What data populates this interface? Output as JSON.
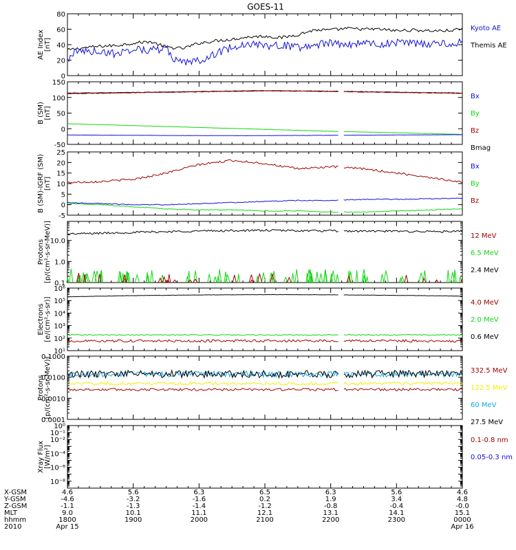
{
  "title": "GOES-11",
  "colors": {
    "black": "#000000",
    "blue": "#1010d8",
    "red": "#a00000",
    "green": "#10d810",
    "cyan": "#10a8e8",
    "yellow": "#f0f000"
  },
  "chart_data": [
    {
      "id": "ae",
      "type": "line",
      "ylabel": [
        "AE Index",
        "[nT]"
      ],
      "yscale": "linear",
      "ylim": [
        0,
        80
      ],
      "yticks": [
        0,
        20,
        40,
        60,
        80
      ],
      "yticklabels": [
        "0",
        "20",
        "40",
        "60",
        "80"
      ],
      "legend": [
        {
          "label": "Kyoto AE",
          "color": "blue"
        },
        {
          "label": "Themis AE",
          "color": "black"
        }
      ],
      "series": [
        {
          "name": "Themis AE",
          "color": "black",
          "x_hours": [
            18.0,
            18.25,
            18.5,
            18.75,
            19.0,
            19.25,
            19.5,
            19.75,
            20.0,
            20.25,
            20.5,
            20.75,
            21.0,
            21.25,
            21.5,
            21.75,
            22.0,
            22.25,
            22.5,
            22.75,
            23.0,
            23.25,
            23.5,
            23.75,
            24.0
          ],
          "y": [
            33,
            36,
            38,
            39,
            42,
            44,
            37,
            35,
            42,
            45,
            47,
            50,
            51,
            49,
            53,
            59,
            59,
            61,
            60,
            60,
            58,
            59,
            58,
            58,
            60
          ],
          "noise": 2
        },
        {
          "name": "Kyoto AE",
          "color": "blue",
          "x_hours": [
            18.0,
            18.1,
            18.25,
            18.5,
            18.75,
            19.0,
            19.25,
            19.5,
            19.6,
            19.75,
            20.0,
            20.25,
            20.5,
            20.75,
            21.0,
            21.25,
            21.5,
            21.75,
            22.0,
            22.25,
            22.5,
            22.75,
            23.0,
            23.25,
            23.5,
            23.75,
            23.9,
            24.0
          ],
          "y": [
            20,
            30,
            32,
            31,
            28,
            35,
            33,
            35,
            22,
            16,
            20,
            28,
            37,
            42,
            38,
            40,
            36,
            40,
            42,
            40,
            43,
            40,
            43,
            42,
            40,
            43,
            38,
            48
          ],
          "noise": 5
        }
      ]
    },
    {
      "id": "bsm",
      "type": "line",
      "ylabel": [
        "B (SM)",
        "[nT]"
      ],
      "yscale": "linear",
      "ylim": [
        -50,
        150
      ],
      "yticks": [
        -50,
        0,
        50,
        100,
        150
      ],
      "yticklabels": [
        "-50",
        "0",
        "50",
        "100",
        "150"
      ],
      "legend": [
        {
          "label": "Bx",
          "color": "blue"
        },
        {
          "label": "By",
          "color": "green"
        },
        {
          "label": "Bz",
          "color": "red"
        },
        {
          "label": "Bmag",
          "color": "black"
        }
      ],
      "series": [
        {
          "name": "Bmag",
          "color": "black",
          "x_hours": [
            18.0,
            19.0,
            20.0,
            21.0,
            22.0,
            23.0,
            24.0
          ],
          "y": [
            114,
            116,
            119,
            122,
            120,
            117,
            114
          ],
          "noise": 0.6,
          "gap": [
            22.13,
            22.2
          ]
        },
        {
          "name": "Bz",
          "color": "red",
          "x_hours": [
            18.0,
            19.0,
            20.0,
            21.0,
            22.0,
            23.0,
            24.0
          ],
          "y": [
            112,
            115,
            118,
            121,
            119,
            116,
            113
          ],
          "noise": 0.8,
          "gap": [
            22.13,
            22.2
          ]
        },
        {
          "name": "By",
          "color": "green",
          "x_hours": [
            18.0,
            19.0,
            20.0,
            21.0,
            22.0,
            23.0,
            24.0
          ],
          "y": [
            16,
            10,
            4,
            -2,
            -8,
            -13,
            -18
          ],
          "noise": 0.3,
          "gap": [
            22.13,
            22.2
          ]
        },
        {
          "name": "Bx",
          "color": "blue",
          "x_hours": [
            18.0,
            19.0,
            20.0,
            21.0,
            22.0,
            23.0,
            24.0
          ],
          "y": [
            -20,
            -21,
            -22,
            -22,
            -21,
            -20,
            -19
          ],
          "noise": 0.3,
          "gap": [
            22.13,
            22.2
          ]
        }
      ]
    },
    {
      "id": "bgrf",
      "type": "line",
      "ylabel": [
        "B (SM)-IGRF (SM)",
        "[nT]"
      ],
      "yscale": "linear",
      "ylim": [
        -5,
        25
      ],
      "yticks": [
        -5,
        0,
        5,
        10,
        15,
        20,
        25
      ],
      "yticklabels": [
        "-5",
        "0",
        "5",
        "10",
        "15",
        "20",
        "25"
      ],
      "legend": [
        {
          "label": "Bx",
          "color": "blue"
        },
        {
          "label": "By",
          "color": "green"
        },
        {
          "label": "Bz",
          "color": "red"
        }
      ],
      "series": [
        {
          "name": "Bz",
          "color": "red",
          "x_hours": [
            18.0,
            18.5,
            19.0,
            19.5,
            20.0,
            20.5,
            21.0,
            21.5,
            22.0,
            22.5,
            23.0,
            23.5,
            24.0
          ],
          "y": [
            10.5,
            11,
            12,
            15,
            19,
            21,
            19.5,
            17,
            18,
            17,
            15,
            13,
            10.5
          ],
          "noise": 0.5,
          "gap": [
            22.13,
            22.2
          ]
        },
        {
          "name": "Bx",
          "color": "blue",
          "x_hours": [
            18.0,
            18.5,
            19.0,
            19.5,
            20.0,
            20.5,
            21.0,
            21.5,
            22.0,
            22.5,
            23.0,
            23.5,
            24.0
          ],
          "y": [
            1,
            0.5,
            0,
            0,
            0.5,
            1,
            1.5,
            2,
            2,
            2.5,
            2.5,
            2.8,
            3
          ],
          "noise": 0.2,
          "gap": [
            22.13,
            22.2
          ]
        },
        {
          "name": "By",
          "color": "green",
          "x_hours": [
            18.0,
            18.5,
            19.0,
            19.5,
            20.0,
            20.5,
            21.0,
            21.5,
            22.0,
            22.5,
            23.0,
            23.5,
            24.0
          ],
          "y": [
            0.5,
            0,
            -1,
            -2,
            -2.5,
            -2.5,
            -3,
            -3,
            -3.5,
            -3.5,
            -3,
            -2.5,
            -2
          ],
          "noise": 0.2,
          "gap": [
            22.13,
            22.2
          ]
        }
      ]
    },
    {
      "id": "prot1",
      "type": "line",
      "ylabel": [
        "Protons",
        "[p/(cm²-s-sr-MeV)]"
      ],
      "yscale": "log",
      "ylim": [
        0.1,
        80
      ],
      "yticks": [
        0.1,
        1.0,
        10.0
      ],
      "yticklabels": [
        "0.1",
        "1.0",
        "10.0"
      ],
      "legend": [
        {
          "label": "12 MeV",
          "color": "red"
        },
        {
          "label": "6.5 MeV",
          "color": "green"
        },
        {
          "label": "2.4 MeV",
          "color": "black"
        }
      ],
      "series": [
        {
          "name": "2.4 MeV",
          "color": "black",
          "x_hours": [
            18.0,
            19.0,
            20.0,
            21.0,
            22.0,
            23.0,
            24.0
          ],
          "y": [
            20,
            24,
            28,
            30,
            28,
            27,
            26
          ],
          "noise": 0.05,
          "gap": [
            22.13,
            22.2
          ]
        },
        {
          "name": "6.5 MeV",
          "color": "green",
          "x_hours": [
            18.0,
            24.0
          ],
          "y": [
            0.1,
            0.1
          ],
          "noise": 0,
          "spikes": {
            "count": 70,
            "min": 0.15,
            "max": 0.45,
            "seed": 11
          },
          "gap": [
            22.13,
            22.2
          ]
        },
        {
          "name": "12 MeV",
          "color": "red",
          "x_hours": [
            18.0,
            24.0
          ],
          "y": [
            0.1,
            0.1
          ],
          "noise": 0,
          "spikes": {
            "count": 25,
            "min": 0.12,
            "max": 0.3,
            "seed": 23
          },
          "gap": [
            22.13,
            22.2
          ]
        }
      ]
    },
    {
      "id": "elec",
      "type": "line",
      "ylabel": [
        "Electrons",
        "[e/(cm²-s-sr)]"
      ],
      "yscale": "log",
      "ylim": [
        10,
        1000000
      ],
      "yticks": [
        10,
        100,
        1000,
        10000,
        100000,
        1000000
      ],
      "yticklabels": [
        "10¹",
        "10²",
        "10³",
        "10⁴",
        "10⁵",
        "10⁶"
      ],
      "legend": [
        {
          "label": "4.0 MeV",
          "color": "red"
        },
        {
          "label": "2.0 MeV",
          "color": "green"
        },
        {
          "label": "0.6 MeV",
          "color": "black"
        }
      ],
      "series": [
        {
          "name": "0.6 MeV",
          "color": "black",
          "x_hours": [
            18.0,
            19.0,
            20.0,
            21.0,
            22.0,
            23.0,
            24.0
          ],
          "y": [
            200000,
            250000,
            280000,
            300000,
            290000,
            260000,
            230000
          ],
          "noise": 0.01,
          "gap": [
            22.13,
            22.2
          ]
        },
        {
          "name": "2.0 MeV",
          "color": "green",
          "x_hours": [
            18.0,
            24.0
          ],
          "y": [
            180,
            180
          ],
          "noise": 0.04,
          "gap": [
            22.13,
            22.2
          ]
        },
        {
          "name": "4.0 MeV",
          "color": "red",
          "x_hours": [
            18.0,
            24.0
          ],
          "y": [
            60,
            60
          ],
          "noise": 0.1,
          "gap": [
            22.13,
            22.2
          ]
        }
      ]
    },
    {
      "id": "prot2",
      "type": "line",
      "ylabel": [
        "Protons",
        "[p/(cm²-s-sr-MeV)]"
      ],
      "yscale": "log",
      "ylim": [
        0.0001,
        0.1
      ],
      "yticks": [
        0.0001,
        0.001,
        0.01,
        0.1
      ],
      "yticklabels": [
        "0.0001",
        "0.0010",
        "0.0100",
        "0.1000"
      ],
      "legend": [
        {
          "label": "332.5 MeV",
          "color": "red"
        },
        {
          "label": "122.5 MeV",
          "color": "yellow"
        },
        {
          "label": "60 MeV",
          "color": "cyan"
        },
        {
          "label": "27.5 MeV",
          "color": "black"
        }
      ],
      "series": [
        {
          "name": "332.5 MeV",
          "color": "red",
          "x_hours": [
            18.0,
            24.0
          ],
          "y": [
            0.0026,
            0.0026
          ],
          "noise": 0.06,
          "gap": [
            22.13,
            22.2
          ]
        },
        {
          "name": "122.5 MeV",
          "color": "yellow",
          "x_hours": [
            18.0,
            24.0
          ],
          "y": [
            0.005,
            0.005
          ],
          "noise": 0.07,
          "gap": [
            22.13,
            22.2
          ]
        },
        {
          "name": "60 MeV",
          "color": "cyan",
          "x_hours": [
            18.0,
            24.0
          ],
          "y": [
            0.014,
            0.014
          ],
          "noise": 0.14,
          "gap": [
            22.13,
            22.2
          ]
        },
        {
          "name": "27.5 MeV",
          "color": "black",
          "x_hours": [
            18.0,
            24.0
          ],
          "y": [
            0.014,
            0.014
          ],
          "noise": 0.18,
          "gap": [
            22.13,
            22.2
          ]
        }
      ]
    },
    {
      "id": "xray",
      "type": "line",
      "ylabel": [
        "Xray Flux",
        "[W/m²]"
      ],
      "yscale": "log",
      "ylim": [
        1e-09,
        1
      ],
      "yticks": [
        1e-09,
        1e-08,
        1e-07,
        1e-06,
        1e-05,
        0.0001,
        0.001,
        0.01,
        0.1,
        1
      ],
      "yticklabels": [
        "",
        "10⁻⁸",
        "",
        "10⁻⁶",
        "",
        "10⁻⁴",
        "",
        "10⁻²",
        "10⁻¹",
        "10⁰"
      ],
      "legend": [
        {
          "label": "0.1-0.8 nm",
          "color": "red"
        },
        {
          "label": "0.05-0.3 nm",
          "color": "blue"
        }
      ],
      "series": []
    }
  ],
  "xaxis": {
    "range_hours": [
      18.0,
      24.0
    ],
    "tick_hours": [
      18,
      19,
      20,
      21,
      22,
      23,
      24
    ],
    "row_labels": [
      "X-GSM",
      "Y-GSM",
      "Z-GSM",
      "MLT",
      "hhmm",
      "2010"
    ],
    "rows": [
      [
        "4.6",
        "5.6",
        "6.3",
        "6.5",
        "6.3",
        "5.6",
        "4.6"
      ],
      [
        "-4.6",
        "-3.2",
        "-1.6",
        "0.2",
        "1.9",
        "3.4",
        "4.8"
      ],
      [
        "-1.1",
        "-1.3",
        "-1.4",
        "-1.2",
        "-0.8",
        "-0.4",
        "-0.0"
      ],
      [
        "9.0",
        "10.1",
        "11.1",
        "12.1",
        "13.1",
        "14.1",
        "15.1"
      ],
      [
        "1800",
        "1900",
        "2000",
        "2100",
        "2200",
        "2300",
        "0000"
      ]
    ],
    "date_labels": [
      "Apr 15",
      "",
      "",
      "",
      "",
      "",
      "Apr 16"
    ]
  }
}
